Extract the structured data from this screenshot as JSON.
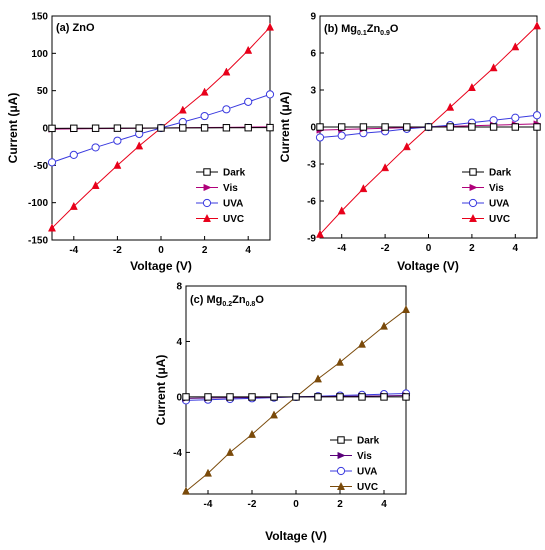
{
  "chart_data": [
    {
      "id": "a",
      "type": "line",
      "title": "(a) ZnO",
      "xlabel": "Voltage (V)",
      "ylabel_main": "Current (",
      "ylabel_unit": "μA",
      "ylabel_end": ")",
      "xlim": [
        -5,
        5
      ],
      "ylim": [
        -150,
        150
      ],
      "xticks": [
        -4,
        -2,
        0,
        2,
        4
      ],
      "yticks": [
        -150,
        -100,
        -50,
        0,
        50,
        100,
        150
      ],
      "legend_position": "bottom-right",
      "x": [
        -5,
        -4,
        -3,
        -2,
        -1,
        0,
        1,
        2,
        3,
        4,
        5
      ],
      "series": [
        {
          "name": "Dark",
          "marker": "square-open",
          "color": "#000000",
          "values": [
            -0.5,
            -0.4,
            -0.3,
            -0.2,
            -0.1,
            0,
            0.1,
            0.2,
            0.3,
            0.4,
            0.5
          ]
        },
        {
          "name": "Vis",
          "marker": "triangle-right",
          "color": "#b0007a",
          "values": [
            -1.5,
            -1.2,
            -0.9,
            -0.6,
            -0.3,
            0,
            0.3,
            0.6,
            0.9,
            1.2,
            1.5
          ]
        },
        {
          "name": "UVA",
          "marker": "circle-open",
          "color": "#3a3adf",
          "values": [
            -46,
            -36,
            -26,
            -17,
            -8,
            0,
            8,
            16,
            25,
            35,
            45
          ]
        },
        {
          "name": "UVC",
          "marker": "triangle-up",
          "color": "#e8001a",
          "values": [
            -134,
            -105,
            -77,
            -50,
            -24,
            0,
            24,
            48,
            75,
            104,
            135
          ]
        }
      ]
    },
    {
      "id": "b",
      "type": "line",
      "title_main": "(b) Mg",
      "title_sub1": "0.1",
      "title_mid": "Zn",
      "title_sub2": "0.9",
      "title_end": "O",
      "xlabel": "Voltage (V)",
      "ylabel_main": "Current (",
      "ylabel_unit": "μA",
      "ylabel_end": ")",
      "xlim": [
        -5,
        5
      ],
      "ylim": [
        -9,
        9
      ],
      "xticks": [
        -4,
        -2,
        0,
        2,
        4
      ],
      "yticks": [
        -9,
        -6,
        -3,
        0,
        3,
        6,
        9
      ],
      "legend_position": "bottom-right",
      "x": [
        -5,
        -4,
        -3,
        -2,
        -1,
        0,
        1,
        2,
        3,
        4,
        5
      ],
      "series": [
        {
          "name": "Dark",
          "marker": "square-open",
          "color": "#000000",
          "values": [
            0,
            0,
            0,
            0,
            0,
            0,
            0,
            0,
            0,
            0,
            0
          ]
        },
        {
          "name": "Vis",
          "marker": "triangle-right",
          "color": "#b0007a",
          "values": [
            -0.25,
            -0.2,
            -0.15,
            -0.1,
            -0.05,
            0,
            0.05,
            0.1,
            0.15,
            0.2,
            0.25
          ]
        },
        {
          "name": "UVA",
          "marker": "circle-open",
          "color": "#3a3adf",
          "values": [
            -0.85,
            -0.7,
            -0.5,
            -0.35,
            -0.15,
            0,
            0.15,
            0.35,
            0.55,
            0.75,
            0.95
          ]
        },
        {
          "name": "UVC",
          "marker": "triangle-up",
          "color": "#e8001a",
          "values": [
            -8.7,
            -6.8,
            -5,
            -3.3,
            -1.6,
            0,
            1.6,
            3.2,
            4.8,
            6.5,
            8.2
          ]
        }
      ]
    },
    {
      "id": "c",
      "type": "line",
      "title_main": "(c) Mg",
      "title_sub1": "0.2",
      "title_mid": "Zn",
      "title_sub2": "0.8",
      "title_end": "O",
      "xlabel": "Voltage (V)",
      "ylabel_main": "Current (",
      "ylabel_unit": "μA",
      "ylabel_end": ")",
      "xlim": [
        -5,
        5
      ],
      "ylim": [
        -7,
        8
      ],
      "xticks": [
        -4,
        -2,
        0,
        2,
        4
      ],
      "yticks": [
        -4,
        0,
        4,
        8
      ],
      "legend_position": "bottom-right",
      "x": [
        -5,
        -4,
        -3,
        -2,
        -1,
        0,
        1,
        2,
        3,
        4,
        5
      ],
      "series": [
        {
          "name": "Dark",
          "marker": "square-open",
          "color": "#000000",
          "values": [
            0,
            0,
            0,
            0,
            0,
            0,
            0,
            0,
            0,
            0,
            0
          ]
        },
        {
          "name": "Vis",
          "marker": "triangle-right",
          "color": "#5a007a",
          "values": [
            -0.1,
            -0.08,
            -0.06,
            -0.04,
            -0.02,
            0,
            0.02,
            0.04,
            0.06,
            0.08,
            0.1
          ]
        },
        {
          "name": "UVA",
          "marker": "circle-open",
          "color": "#3a3adf",
          "values": [
            -0.25,
            -0.2,
            -0.15,
            -0.1,
            -0.05,
            0,
            0.05,
            0.1,
            0.15,
            0.2,
            0.25
          ]
        },
        {
          "name": "UVC",
          "marker": "triangle-up",
          "color": "#7a4a0a",
          "values": [
            -6.8,
            -5.5,
            -4,
            -2.7,
            -1.3,
            0,
            1.3,
            2.5,
            3.8,
            5.1,
            6.3
          ]
        }
      ]
    }
  ]
}
